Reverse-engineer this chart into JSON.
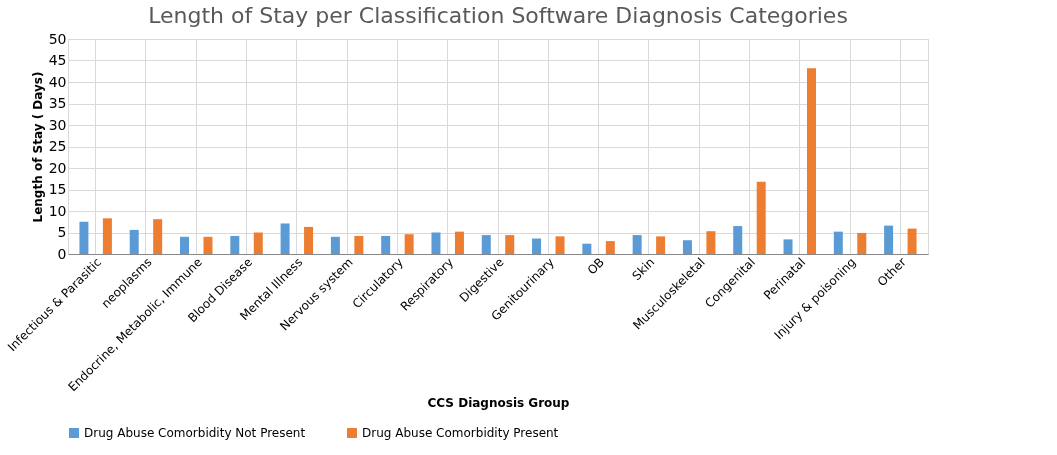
{
  "chart_data": {
    "type": "bar",
    "title": "Length of Stay per Classification Software  Diagnosis Categories",
    "xlabel": "CCS Diagnosis Group",
    "ylabel": "Length of Stay ( Days)",
    "categories": [
      "Infectious & Parasitic",
      "neoplasms",
      "Endocrine, Metabolic, Immune",
      "Blood Disease",
      "Mental Illness",
      "Nervous system",
      "Circulatory",
      "Respiratory",
      "Digestive",
      "Genitourinary",
      "OB",
      "Skin",
      "Musculoskeletal",
      "Congenital",
      "Perinatal",
      "Injury & poisoning",
      "Other"
    ],
    "series": [
      {
        "name": "Drug Abuse Comorbidity Not Present",
        "color": "#5b9bd5",
        "values": [
          7.5,
          5.6,
          4.0,
          4.2,
          7.1,
          4.0,
          4.2,
          5.0,
          4.4,
          3.6,
          2.4,
          4.4,
          3.2,
          6.5,
          3.4,
          5.2,
          6.6
        ]
      },
      {
        "name": "Drug Abuse Comorbidity Present",
        "color": "#ed7d31",
        "values": [
          8.3,
          8.1,
          4.0,
          5.0,
          6.3,
          4.2,
          4.6,
          5.2,
          4.4,
          4.1,
          3.0,
          4.1,
          5.3,
          16.8,
          43.2,
          4.9,
          5.9
        ]
      }
    ],
    "ylim": [
      0,
      50
    ],
    "yticks": [
      0,
      5,
      10,
      15,
      20,
      25,
      30,
      35,
      40,
      45,
      50
    ],
    "grid": true,
    "legend": "bottom"
  }
}
